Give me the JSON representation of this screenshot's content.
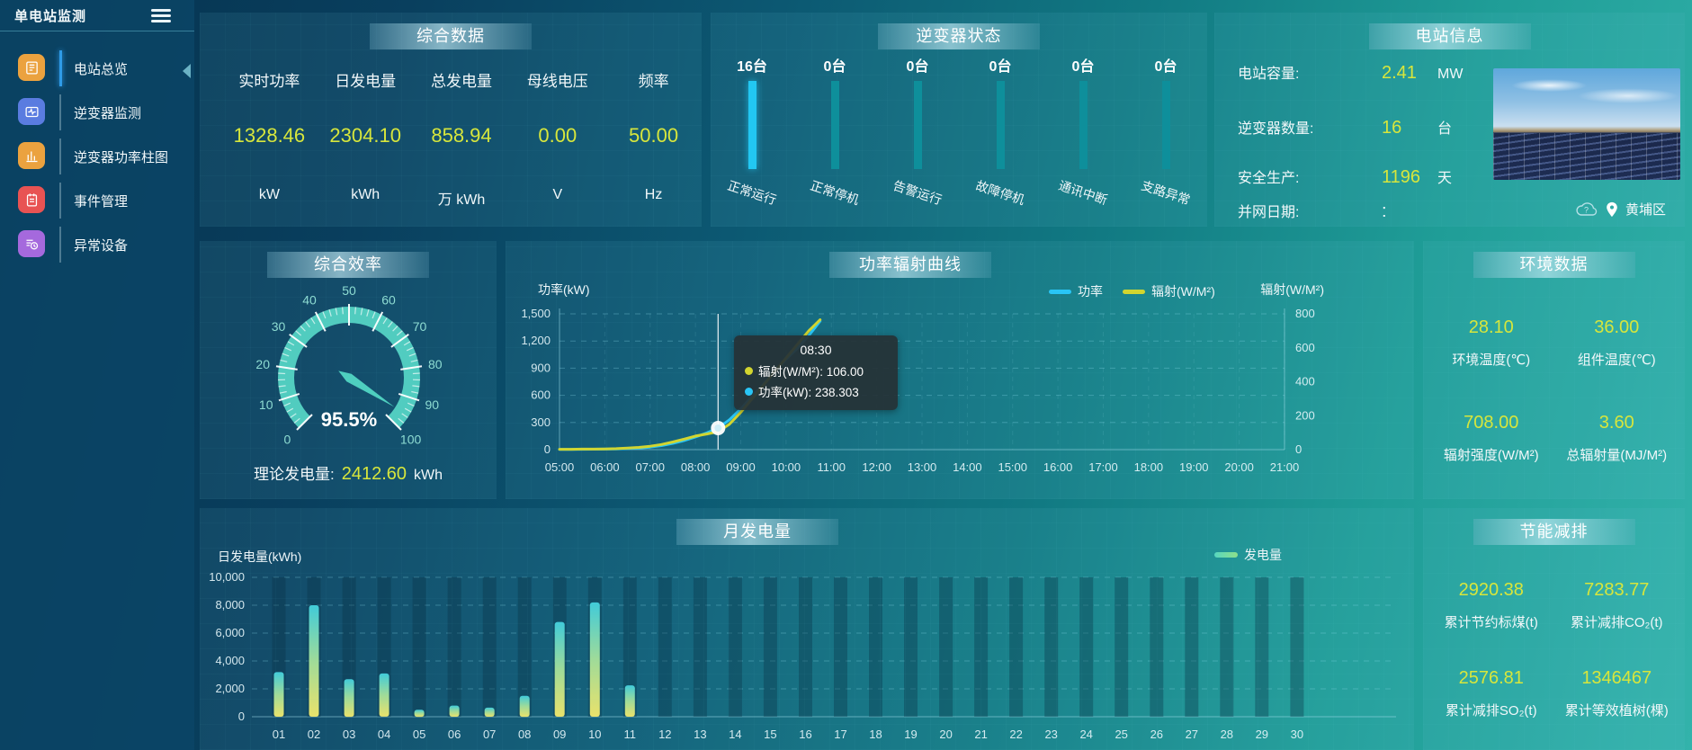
{
  "app": {
    "title": "单电站监测"
  },
  "sidebar": {
    "items": [
      {
        "label": "电站总览",
        "active": true
      },
      {
        "label": "逆变器监测",
        "active": false
      },
      {
        "label": "逆变器功率柱图",
        "active": false
      },
      {
        "label": "事件管理",
        "active": false
      },
      {
        "label": "异常设备",
        "active": false
      }
    ]
  },
  "summary": {
    "title": "综合数据",
    "metrics": [
      {
        "label": "实时功率",
        "value": "1328.46",
        "unit": "kW"
      },
      {
        "label": "日发电量",
        "value": "2304.10",
        "unit": "kWh"
      },
      {
        "label": "总发电量",
        "value": "858.94",
        "unit": "万 kWh"
      },
      {
        "label": "母线电压",
        "value": "0.00",
        "unit": "V"
      },
      {
        "label": "频率",
        "value": "50.00",
        "unit": "Hz"
      }
    ]
  },
  "inverter_status": {
    "title": "逆变器状态",
    "items": [
      {
        "count": "16台",
        "label": "正常运行",
        "highlight": true
      },
      {
        "count": "0台",
        "label": "正常停机",
        "highlight": false
      },
      {
        "count": "0台",
        "label": "告警运行",
        "highlight": false
      },
      {
        "count": "0台",
        "label": "故障停机",
        "highlight": false
      },
      {
        "count": "0台",
        "label": "通讯中断",
        "highlight": false
      },
      {
        "count": "0台",
        "label": "支路异常",
        "highlight": false
      }
    ]
  },
  "station_info": {
    "title": "电站信息",
    "rows": [
      {
        "label": "电站容量:",
        "value": "2.41",
        "unit": "MW"
      },
      {
        "label": "逆变器数量:",
        "value": "16",
        "unit": "台"
      },
      {
        "label": "安全生产:",
        "value": "1196",
        "unit": "天"
      },
      {
        "label": "并网日期:",
        "value": ":",
        "unit": ""
      }
    ],
    "location": "黄埔区"
  },
  "efficiency": {
    "title": "综合效率",
    "value_label": "95.5%",
    "footer_label": "理论发电量:",
    "footer_value": "2412.60",
    "footer_unit": "kWh"
  },
  "power_radiation": {
    "title": "功率辐射曲线"
  },
  "environment": {
    "title": "环境数据",
    "metrics": [
      {
        "value": "28.10",
        "label": "环境温度(℃)"
      },
      {
        "value": "36.00",
        "label": "组件温度(℃)"
      },
      {
        "value": "708.00",
        "label": "辐射强度(W/M²)"
      },
      {
        "value": "3.60",
        "label": "总辐射量(MJ/M²)"
      }
    ]
  },
  "monthly": {
    "title": "月发电量"
  },
  "energy_saving": {
    "title": "节能减排",
    "metrics": [
      {
        "value": "2920.38",
        "label": "累计节约标煤(t)"
      },
      {
        "value": "7283.77",
        "label": "累计减排CO₂(t)"
      },
      {
        "value": "2576.81",
        "label": "累计减排SO₂(t)"
      },
      {
        "value": "1346467",
        "label": "累计等效植树(棵)"
      }
    ]
  },
  "colors": {
    "accent_yellow": "#d7e63c",
    "power_line": "#29c5f6",
    "radiation_line": "#d2d52f",
    "bar_top": "#41cbd9",
    "bar_bottom": "#e9e26b",
    "gauge_arc": "#57d7c7",
    "highlight_bar": "#22c7f2",
    "idle_bar": "#0e8f9b"
  },
  "chart_data": [
    {
      "id": "efficiency_gauge",
      "type": "gauge",
      "title": "综合效率",
      "min": 0,
      "max": 100,
      "tick_step": 10,
      "tick_labels": [
        "0",
        "10",
        "20",
        "30",
        "40",
        "50",
        "60",
        "70",
        "80",
        "90",
        "100"
      ],
      "value": 95.5,
      "value_label": "95.5%"
    },
    {
      "id": "power_radiation",
      "type": "line",
      "title": "功率辐射曲线",
      "ylabel_left": "功率(kW)",
      "ylabel_right": "辐射(W/M²)",
      "ylim_left": [
        0,
        1500
      ],
      "ylim_right": [
        0,
        800
      ],
      "yticks_left": [
        "0",
        "300",
        "600",
        "900",
        "1,200",
        "1,500"
      ],
      "yticks_right": [
        "0",
        "200",
        "400",
        "600",
        "800"
      ],
      "x_range": [
        5,
        21
      ],
      "xticks": [
        "05:00",
        "06:00",
        "07:00",
        "08:00",
        "09:00",
        "10:00",
        "11:00",
        "12:00",
        "13:00",
        "14:00",
        "15:00",
        "16:00",
        "17:00",
        "18:00",
        "19:00",
        "20:00",
        "21:00"
      ],
      "legend": [
        {
          "name": "功率",
          "color": "#29c5f6"
        },
        {
          "name": "辐射(W/M²)",
          "color": "#d2d52f"
        }
      ],
      "series": [
        {
          "name": "功率",
          "axis": "left",
          "color": "#29c5f6",
          "x": [
            5,
            5.25,
            5.5,
            5.75,
            6,
            6.25,
            6.5,
            6.75,
            7,
            7.25,
            7.5,
            7.75,
            8,
            8.25,
            8.5,
            8.75,
            9,
            9.25,
            9.5,
            9.75,
            10,
            10.25,
            10.5,
            10.75
          ],
          "values": [
            3,
            3,
            4,
            5,
            6,
            8,
            12,
            18,
            28,
            45,
            70,
            100,
            140,
            185,
            238.3,
            330,
            450,
            590,
            720,
            860,
            1000,
            1120,
            1260,
            1420
          ]
        },
        {
          "name": "辐射(W/M²)",
          "axis": "right",
          "color": "#d2d52f",
          "x": [
            5,
            5.25,
            5.5,
            5.75,
            6,
            6.25,
            6.5,
            6.75,
            7,
            7.25,
            7.5,
            7.75,
            8,
            8.25,
            8.5,
            8.75,
            9,
            9.25,
            9.5,
            9.75,
            10,
            10.25,
            10.5,
            10.75
          ],
          "values": [
            2,
            2,
            3,
            3,
            4,
            6,
            9,
            13,
            20,
            30,
            45,
            62,
            80,
            92,
            106,
            150,
            220,
            300,
            380,
            460,
            540,
            620,
            700,
            765
          ]
        }
      ],
      "tooltip": {
        "x": 8.5,
        "title": "08:30",
        "marker_value": 238.303,
        "rows": [
          {
            "color": "#d2d52f",
            "text": "辐射(W/M²): 106.00"
          },
          {
            "color": "#29c5f6",
            "text": "功率(kW): 238.303"
          }
        ]
      }
    },
    {
      "id": "monthly_generation",
      "type": "bar",
      "title": "月发电量",
      "ylabel": "日发电量(kWh)",
      "ylim": [
        0,
        10000
      ],
      "yticks": [
        "0",
        "2,000",
        "4,000",
        "6,000",
        "8,000",
        "10,000"
      ],
      "categories": [
        "01",
        "02",
        "03",
        "04",
        "05",
        "06",
        "07",
        "08",
        "09",
        "10",
        "11",
        "12",
        "13",
        "14",
        "15",
        "16",
        "17",
        "18",
        "19",
        "20",
        "21",
        "22",
        "23",
        "24",
        "25",
        "26",
        "27",
        "28",
        "29",
        "30"
      ],
      "values": [
        3200,
        8000,
        2700,
        3100,
        500,
        800,
        650,
        1500,
        6800,
        8200,
        2250,
        0,
        0,
        0,
        0,
        0,
        0,
        0,
        0,
        0,
        0,
        0,
        0,
        0,
        0,
        0,
        0,
        0,
        0,
        0
      ],
      "legend": [
        {
          "name": "发电量"
        }
      ]
    }
  ]
}
